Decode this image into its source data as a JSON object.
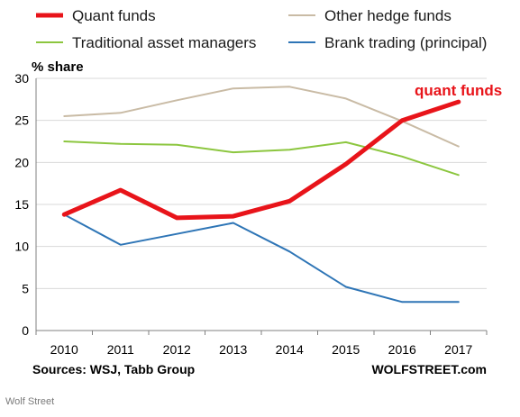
{
  "chart_data": {
    "type": "line",
    "ylabel": "% share",
    "ylim": [
      0,
      30
    ],
    "yticks": [
      0,
      5,
      10,
      15,
      20,
      25,
      30
    ],
    "categories": [
      "2010",
      "2011",
      "2012",
      "2013",
      "2014",
      "2015",
      "2016",
      "2017"
    ],
    "series": [
      {
        "name": "Quant funds",
        "color": "#e8141a",
        "values": [
          13.8,
          16.7,
          13.4,
          13.6,
          15.4,
          19.8,
          25.0,
          27.2
        ]
      },
      {
        "name": "Other hedge funds",
        "color": "#c9bba5",
        "values": [
          25.5,
          25.9,
          27.4,
          28.8,
          29.0,
          27.6,
          24.9,
          21.9
        ]
      },
      {
        "name": "Traditional asset managers",
        "color": "#8cc63f",
        "values": [
          22.5,
          22.2,
          22.1,
          21.2,
          21.5,
          22.4,
          20.7,
          18.5
        ]
      },
      {
        "name": "Brank trading (principal)",
        "color": "#2e75b6",
        "values": [
          13.8,
          10.2,
          11.5,
          12.8,
          9.4,
          5.2,
          3.4,
          3.4
        ]
      }
    ],
    "annotation": {
      "text": "quant funds",
      "color": "#e8141a"
    },
    "grid": true,
    "legend_position": "top"
  },
  "footer": {
    "sources": "Sources: WSJ, Tabb Group",
    "brand": "WOLFSTREET.com"
  },
  "credit": "Wolf Street"
}
